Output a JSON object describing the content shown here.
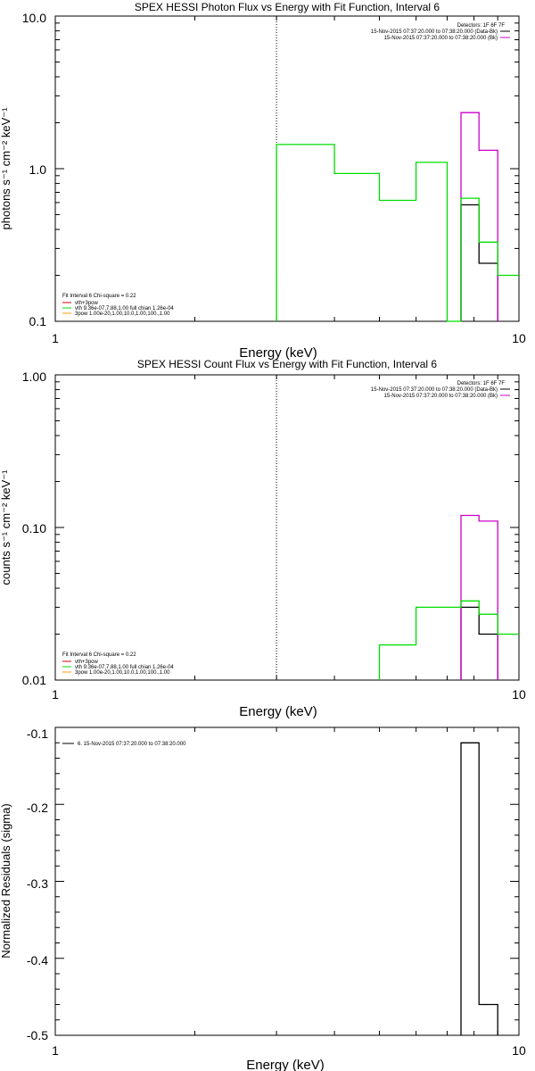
{
  "colors": {
    "black": "#000000",
    "green": "#00dd00",
    "magenta": "#cc00cc",
    "red": "#cc0000",
    "orange": "#ff9900"
  },
  "chart_data": [
    {
      "type": "line",
      "style": "histogram",
      "title": "SPEX HESSI Photon Flux vs Energy with Fit Function, Interval 6",
      "xlabel": "Energy (keV)",
      "ylabel": "photons s⁻¹ cm⁻² keV⁻¹",
      "xscale": "log",
      "yscale": "log",
      "xlim": [
        1,
        10
      ],
      "ylim": [
        0.1,
        10
      ],
      "xticks": [
        "1",
        "10"
      ],
      "yticks": [
        "0.1",
        "1.0",
        "10.0"
      ],
      "vline_x": 3.0,
      "legend_top": [
        "Detectors: 1F 6F 7F",
        "15-Nov-2015 07:37:20.000 to 07:38:20.000 (Data-Bk)",
        "15-Nov-2015 07:37:20.000 to 07:38:20.000 (Bk)"
      ],
      "legend_top_colors": [
        "",
        "black",
        "magenta"
      ],
      "legend_bottom": [
        "Fit Interval 6   Chi-square = 0.22",
        "vth+3pow",
        "vth 9.36e-07,7.88,1.00  full chian 1.26e-04",
        "3pow 1.00e-20,1.00,10.0,1.00,100.,1.00"
      ],
      "legend_bottom_colors": [
        "",
        "red",
        "green",
        "orange"
      ],
      "series": [
        {
          "name": "Data-Bk",
          "color": "black",
          "edges": [
            7.5,
            8.2,
            9.0
          ],
          "values": [
            0.58,
            0.24
          ]
        },
        {
          "name": "Bk",
          "color": "magenta",
          "edges": [
            7.5,
            8.2,
            9.0
          ],
          "values": [
            2.33,
            1.32
          ]
        },
        {
          "name": "vth+3pow",
          "color": "green",
          "edges": [
            3.0,
            4.0,
            5.0,
            6.0,
            7.0,
            7.5,
            8.2,
            9.0,
            10.0
          ],
          "values": [
            1.44,
            0.93,
            0.62,
            1.1,
            0.1,
            0.64,
            0.33,
            0.2
          ]
        }
      ]
    },
    {
      "type": "line",
      "style": "histogram",
      "title": "SPEX HESSI Count Flux vs Energy with Fit Function, Interval 6",
      "xlabel": "Energy (keV)",
      "ylabel": "counts s⁻¹ cm⁻² keV⁻¹",
      "xscale": "log",
      "yscale": "log",
      "xlim": [
        1,
        10
      ],
      "ylim": [
        0.01,
        1
      ],
      "xticks": [
        "1",
        "10"
      ],
      "yticks": [
        "0.01",
        "0.10",
        "1.00"
      ],
      "vline_x": 3.0,
      "legend_top": [
        "Detectors: 1F 6F 7F",
        "15-Nov-2015 07:37:20.000 to 07:38:20.000 (Data-Bk)",
        "15-Nov-2015 07:37:20.000 to 07:38:20.000 (Bk)"
      ],
      "legend_top_colors": [
        "",
        "black",
        "magenta"
      ],
      "legend_bottom": [
        "Fit Interval 6   Chi-square = 0.22",
        "vth+3pow",
        "vth 9.36e-07,7.88,1.00  full chian 1.26e-04",
        "3pow 1.00e-20,1.00,10.0,1.00,100.,1.00"
      ],
      "legend_bottom_colors": [
        "",
        "red",
        "green",
        "orange"
      ],
      "series": [
        {
          "name": "Data-Bk",
          "color": "black",
          "edges": [
            7.5,
            8.2,
            9.0
          ],
          "values": [
            0.03,
            0.02
          ]
        },
        {
          "name": "Bk",
          "color": "magenta",
          "edges": [
            7.5,
            8.2,
            9.0
          ],
          "values": [
            0.12,
            0.11
          ]
        },
        {
          "name": "vth+3pow",
          "color": "green",
          "edges": [
            5.0,
            6.0,
            7.0,
            7.5,
            8.2,
            9.0,
            10.0
          ],
          "values": [
            0.017,
            0.03,
            0.03,
            0.033,
            0.027,
            0.02
          ]
        }
      ]
    },
    {
      "type": "line",
      "style": "histogram",
      "title": "",
      "xlabel": "Energy (keV)",
      "ylabel": "Normalized Residuals (sigma)",
      "xscale": "log",
      "yscale": "linear",
      "xlim": [
        1,
        10
      ],
      "ylim": [
        -0.5,
        -0.1
      ],
      "xticks": [
        "1",
        "10"
      ],
      "yticks": [
        "-0.5",
        "-0.4",
        "-0.3",
        "-0.2",
        "-0.1"
      ],
      "legend_top": [
        "6. 15-Nov-2015 07:37:20.000 to 07:38:20.000"
      ],
      "series": [
        {
          "color": "black",
          "edges": [
            7.5,
            8.2,
            9.0
          ],
          "values": [
            -0.12,
            -0.46
          ]
        }
      ]
    }
  ]
}
